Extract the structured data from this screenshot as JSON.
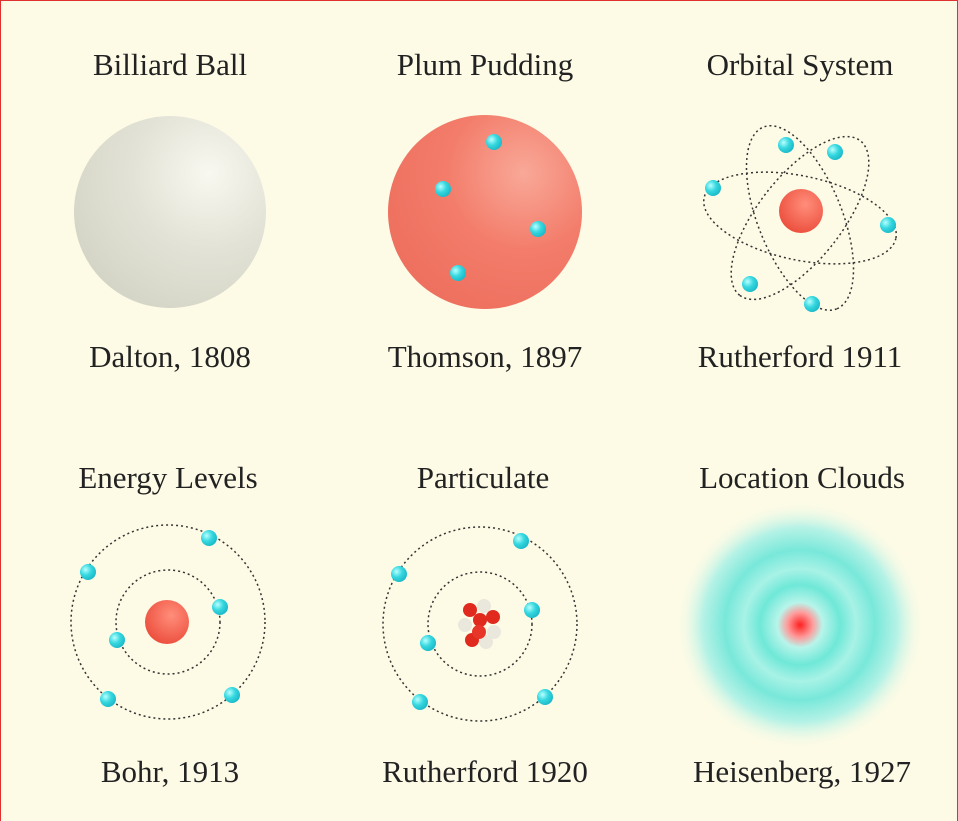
{
  "panels": [
    {
      "title": "Billiard Ball",
      "caption": "Dalton, 1808"
    },
    {
      "title": "Plum Pudding",
      "caption": "Thomson, 1897"
    },
    {
      "title": "Orbital System",
      "caption": "Rutherford 1911"
    },
    {
      "title": "Energy Levels",
      "caption": "Bohr, 1913"
    },
    {
      "title": "Particulate",
      "caption": "Rutherford 1920"
    },
    {
      "title": "Location Clouds",
      "caption": "Heisenberg, 1927"
    }
  ]
}
